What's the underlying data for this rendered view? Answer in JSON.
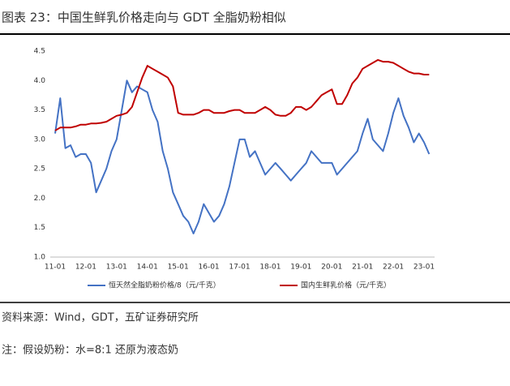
{
  "chart_data": {
    "type": "line",
    "title": "图表 23：中国生鲜乳价格走向与 GDT 全脂奶粉相似",
    "source": "资料来源：Wind，GDT，五矿证券研究所",
    "note": "注：假设奶粉：水=8:1 还原为液态奶",
    "x": [
      "11-01",
      "11-03",
      "11-05",
      "11-07",
      "11-09",
      "11-11",
      "12-01",
      "12-03",
      "12-05",
      "12-07",
      "12-09",
      "12-11",
      "13-01",
      "13-03",
      "13-05",
      "13-07",
      "13-09",
      "13-11",
      "14-01",
      "14-03",
      "14-05",
      "14-07",
      "14-09",
      "14-11",
      "15-01",
      "15-03",
      "15-05",
      "15-07",
      "15-09",
      "15-11",
      "16-01",
      "16-03",
      "16-05",
      "16-07",
      "16-09",
      "16-11",
      "17-01",
      "17-03",
      "17-05",
      "17-07",
      "17-09",
      "17-11",
      "18-01",
      "18-03",
      "18-05",
      "18-07",
      "18-09",
      "18-11",
      "19-01",
      "19-03",
      "19-05",
      "19-07",
      "19-09",
      "19-11",
      "20-01",
      "20-03",
      "20-05",
      "20-07",
      "20-09",
      "20-11",
      "21-01",
      "21-03",
      "21-05",
      "21-07",
      "21-09",
      "21-11",
      "22-01",
      "22-03",
      "22-05",
      "22-07",
      "22-09",
      "22-11",
      "23-01",
      "23-03"
    ],
    "xticks": [
      "11-01",
      "12-01",
      "13-01",
      "14-01",
      "15-01",
      "16-01",
      "17-01",
      "18-01",
      "19-01",
      "20-01",
      "21-01",
      "22-01",
      "23-01"
    ],
    "series": [
      {
        "name": "恒天然全脂奶粉价格/8（元/千克）",
        "color": "#4472c4",
        "values": [
          3.1,
          3.7,
          2.85,
          2.9,
          2.7,
          2.75,
          2.75,
          2.6,
          2.1,
          2.3,
          2.5,
          2.8,
          3.0,
          3.5,
          4.0,
          3.8,
          3.9,
          3.85,
          3.8,
          3.5,
          3.3,
          2.8,
          2.5,
          2.1,
          1.9,
          1.7,
          1.6,
          1.4,
          1.6,
          1.9,
          1.75,
          1.6,
          1.7,
          1.9,
          2.2,
          2.6,
          3.0,
          3.0,
          2.7,
          2.8,
          2.6,
          2.4,
          2.5,
          2.6,
          2.5,
          2.4,
          2.3,
          2.4,
          2.5,
          2.6,
          2.8,
          2.7,
          2.6,
          2.6,
          2.6,
          2.4,
          2.5,
          2.6,
          2.7,
          2.8,
          3.1,
          3.35,
          3.0,
          2.9,
          2.8,
          3.1,
          3.45,
          3.7,
          3.4,
          3.2,
          2.95,
          3.1,
          2.95,
          2.75
        ]
      },
      {
        "name": "国内生鲜乳价格（元/千克）",
        "color": "#c00000",
        "values": [
          3.15,
          3.2,
          3.2,
          3.2,
          3.22,
          3.25,
          3.25,
          3.27,
          3.27,
          3.28,
          3.3,
          3.35,
          3.4,
          3.42,
          3.45,
          3.55,
          3.8,
          4.05,
          4.25,
          4.2,
          4.15,
          4.1,
          4.05,
          3.9,
          3.45,
          3.42,
          3.42,
          3.42,
          3.45,
          3.5,
          3.5,
          3.45,
          3.45,
          3.45,
          3.48,
          3.5,
          3.5,
          3.45,
          3.45,
          3.45,
          3.5,
          3.55,
          3.5,
          3.42,
          3.4,
          3.4,
          3.45,
          3.55,
          3.55,
          3.5,
          3.55,
          3.65,
          3.75,
          3.8,
          3.85,
          3.6,
          3.6,
          3.75,
          3.95,
          4.05,
          4.2,
          4.25,
          4.3,
          4.35,
          4.32,
          4.32,
          4.3,
          4.25,
          4.2,
          4.15,
          4.12,
          4.12,
          4.1,
          4.1
        ]
      }
    ],
    "ylim": [
      1,
      4.5
    ],
    "yticks": [
      {
        "value": 1,
        "label": "1.0"
      },
      1.5,
      {
        "value": 2,
        "label": "2.0"
      },
      2.5,
      {
        "value": 3,
        "label": "3.0"
      },
      3.5,
      {
        "value": 4,
        "label": "4.0"
      },
      4.5
    ]
  }
}
